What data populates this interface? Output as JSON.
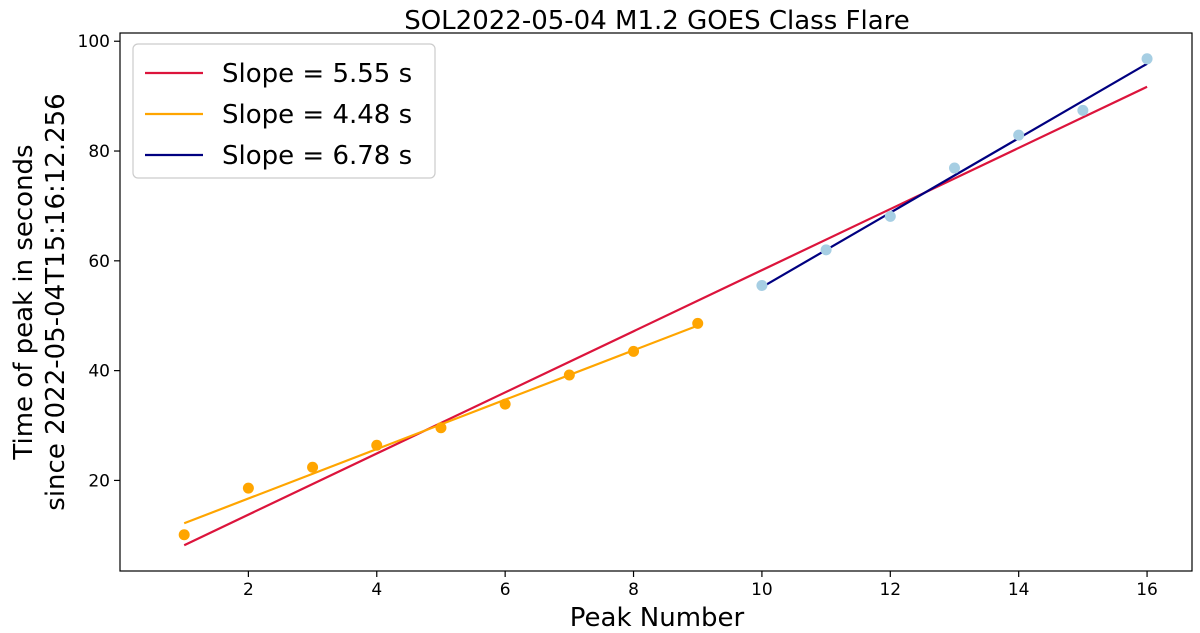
{
  "chart_data": {
    "type": "scatter",
    "title": "SOL2022-05-04 M1.2 GOES Class Flare",
    "xlabel": "Peak Number",
    "ylabel_lines": [
      "Time of peak in seconds",
      "since 2022-05-04T15:16:12.256"
    ],
    "xlim": [
      0.0,
      16.7
    ],
    "ylim": [
      3.5,
      101.5
    ],
    "xticks": [
      2,
      4,
      6,
      8,
      10,
      12,
      14,
      16
    ],
    "yticks": [
      20,
      40,
      60,
      80,
      100
    ],
    "scatter_series": [
      {
        "color": "#ffa500",
        "x": [
          1,
          2,
          3,
          4,
          5,
          6,
          7,
          8,
          9
        ],
        "y": [
          10.1,
          18.6,
          22.4,
          26.4,
          29.6,
          33.9,
          39.2,
          43.5,
          48.6
        ]
      },
      {
        "color": "#a6cee3",
        "x": [
          10,
          11,
          12,
          13,
          14,
          15,
          16
        ],
        "y": [
          55.5,
          62.0,
          68.1,
          76.9,
          82.9,
          87.4,
          96.8
        ]
      }
    ],
    "fit_lines": [
      {
        "name": "Slope = 5.55 s",
        "color": "#dc143c",
        "x": [
          1,
          16
        ],
        "y": [
          8.2,
          91.7
        ]
      },
      {
        "name": "Slope = 4.48 s",
        "color": "#ffa500",
        "x": [
          1,
          9
        ],
        "y": [
          12.2,
          48.2
        ]
      },
      {
        "name": "Slope = 6.78 s",
        "color": "#000080",
        "x": [
          10,
          16
        ],
        "y": [
          55.2,
          95.9
        ]
      }
    ],
    "legend_position": "upper-left",
    "grid": false
  }
}
